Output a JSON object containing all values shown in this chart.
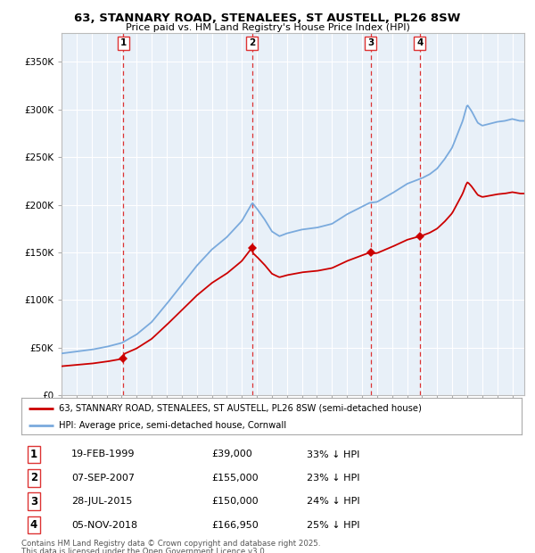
{
  "title1": "63, STANNARY ROAD, STENALEES, ST AUSTELL, PL26 8SW",
  "title2": "Price paid vs. HM Land Registry's House Price Index (HPI)",
  "legend_red": "63, STANNARY ROAD, STENALEES, ST AUSTELL, PL26 8SW (semi-detached house)",
  "legend_blue": "HPI: Average price, semi-detached house, Cornwall",
  "footer1": "Contains HM Land Registry data © Crown copyright and database right 2025.",
  "footer2": "This data is licensed under the Open Government Licence v3.0.",
  "transactions": [
    {
      "num": 1,
      "date": "19-FEB-1999",
      "price": 39000,
      "pct": "33%",
      "year": 1999.12
    },
    {
      "num": 2,
      "date": "07-SEP-2007",
      "price": 155000,
      "pct": "23%",
      "year": 2007.68
    },
    {
      "num": 3,
      "date": "28-JUL-2015",
      "price": 150000,
      "pct": "24%",
      "year": 2015.57
    },
    {
      "num": 4,
      "date": "05-NOV-2018",
      "price": 166950,
      "pct": "25%",
      "year": 2018.84
    }
  ],
  "red_color": "#cc0000",
  "blue_color": "#7aaadd",
  "plot_bg": "#e8f0f8",
  "grid_color": "#ffffff",
  "dashed_color": "#dd3333",
  "ylim": [
    0,
    380000
  ],
  "xlim_start": 1995.0,
  "xlim_end": 2025.8,
  "hpi_key_x": [
    1995.0,
    1996.0,
    1997.0,
    1998.0,
    1999.0,
    2000.0,
    2001.0,
    2002.0,
    2003.0,
    2004.0,
    2005.0,
    2006.0,
    2007.0,
    2007.7,
    2008.0,
    2008.5,
    2009.0,
    2009.5,
    2010.0,
    2011.0,
    2012.0,
    2013.0,
    2014.0,
    2015.0,
    2015.5,
    2016.0,
    2017.0,
    2018.0,
    2018.5,
    2019.0,
    2019.5,
    2020.0,
    2020.5,
    2021.0,
    2021.3,
    2021.7,
    2022.0,
    2022.3,
    2022.7,
    2023.0,
    2023.5,
    2024.0,
    2024.5,
    2025.0,
    2025.5
  ],
  "hpi_key_y": [
    44000,
    46000,
    48000,
    51000,
    55000,
    64000,
    77000,
    96000,
    116000,
    136000,
    153000,
    166000,
    183000,
    202000,
    196000,
    185000,
    172000,
    167000,
    170000,
    174000,
    176000,
    180000,
    190000,
    198000,
    202000,
    203000,
    212000,
    222000,
    225000,
    228000,
    232000,
    238000,
    248000,
    260000,
    272000,
    288000,
    305000,
    298000,
    286000,
    283000,
    285000,
    287000,
    288000,
    290000,
    288000
  ]
}
